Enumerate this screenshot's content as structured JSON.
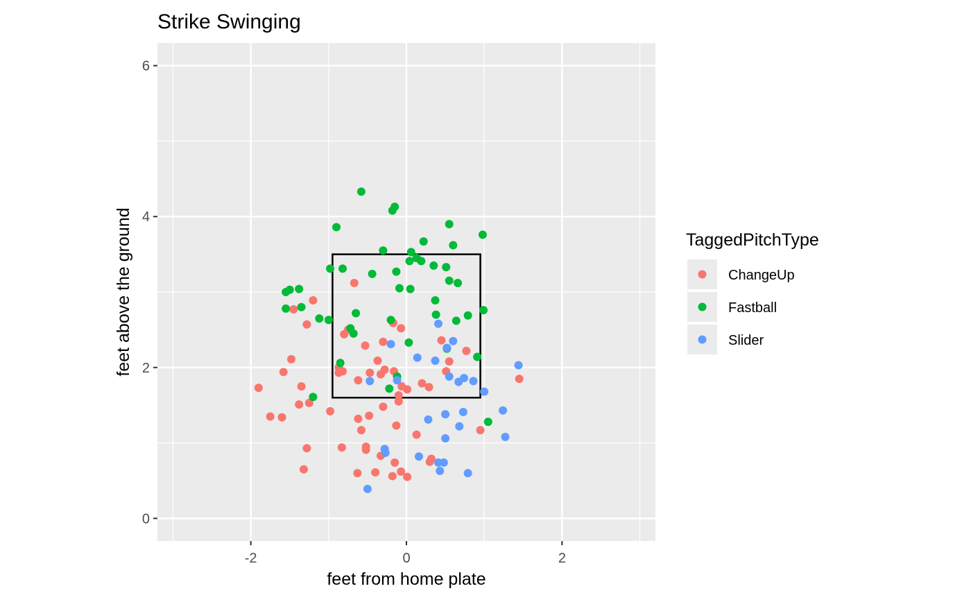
{
  "chart_data": {
    "type": "scatter",
    "title": "Strike Swinging",
    "xlabel": "feet from home plate",
    "ylabel": "feet above the ground",
    "xlim": [
      -3.2,
      3.2
    ],
    "ylim": [
      -0.3,
      6.3
    ],
    "x_ticks": [
      -2,
      0,
      2
    ],
    "y_ticks": [
      0,
      2,
      4,
      6
    ],
    "x_tick_labels": [
      "-2",
      "0",
      "2"
    ],
    "y_tick_labels": [
      "0",
      "2",
      "4",
      "6"
    ],
    "grid": true,
    "legend": {
      "title": "TaggedPitchType",
      "position": "right"
    },
    "strike_zone": {
      "x": [
        -0.95,
        0.95
      ],
      "y": [
        1.6,
        3.5
      ],
      "color": "#000000"
    },
    "series": [
      {
        "name": "ChangeUp",
        "color": "#F8766D",
        "points": [
          [
            -1.9,
            1.73
          ],
          [
            -1.75,
            1.35
          ],
          [
            -1.6,
            1.34
          ],
          [
            -1.58,
            1.94
          ],
          [
            -1.48,
            2.11
          ],
          [
            -1.45,
            2.77
          ],
          [
            -1.38,
            1.51
          ],
          [
            -1.35,
            1.75
          ],
          [
            -1.32,
            0.65
          ],
          [
            -1.28,
            2.57
          ],
          [
            -1.28,
            0.93
          ],
          [
            -1.25,
            1.53
          ],
          [
            -1.2,
            2.89
          ],
          [
            -0.98,
            1.42
          ],
          [
            -0.87,
            1.93
          ],
          [
            -0.87,
            2.0
          ],
          [
            -0.82,
            1.95
          ],
          [
            -0.83,
            0.94
          ],
          [
            -0.8,
            2.44
          ],
          [
            -0.75,
            2.5
          ],
          [
            -0.67,
            3.12
          ],
          [
            -0.62,
            1.83
          ],
          [
            -0.62,
            1.32
          ],
          [
            -0.63,
            0.6
          ],
          [
            -0.58,
            1.17
          ],
          [
            -0.53,
            2.29
          ],
          [
            -0.52,
            0.95
          ],
          [
            -0.52,
            0.91
          ],
          [
            -0.48,
            1.36
          ],
          [
            -0.47,
            1.93
          ],
          [
            -0.4,
            0.61
          ],
          [
            -0.37,
            2.09
          ],
          [
            -0.33,
            1.91
          ],
          [
            -0.33,
            0.83
          ],
          [
            -0.3,
            1.48
          ],
          [
            -0.3,
            2.34
          ],
          [
            -0.28,
            1.97
          ],
          [
            -0.18,
            0.56
          ],
          [
            -0.17,
            2.59
          ],
          [
            -0.16,
            1.95
          ],
          [
            -0.15,
            0.74
          ],
          [
            -0.13,
            1.23
          ],
          [
            -0.1,
            1.63
          ],
          [
            -0.1,
            1.55
          ],
          [
            -0.07,
            2.52
          ],
          [
            -0.06,
            1.75
          ],
          [
            -0.07,
            0.62
          ],
          [
            0.01,
            1.71
          ],
          [
            0.01,
            0.55
          ],
          [
            0.13,
            1.11
          ],
          [
            0.2,
            1.79
          ],
          [
            0.29,
            1.74
          ],
          [
            0.3,
            0.75
          ],
          [
            0.32,
            0.79
          ],
          [
            0.45,
            2.36
          ],
          [
            0.51,
            1.95
          ],
          [
            0.55,
            2.08
          ],
          [
            0.77,
            2.22
          ],
          [
            0.95,
            1.17
          ],
          [
            1.45,
            1.85
          ]
        ]
      },
      {
        "name": "Fastball",
        "color": "#00BA38",
        "points": [
          [
            -1.55,
            3.0
          ],
          [
            -1.5,
            3.03
          ],
          [
            -1.55,
            2.78
          ],
          [
            -1.38,
            3.04
          ],
          [
            -1.35,
            2.8
          ],
          [
            -1.2,
            1.61
          ],
          [
            -1.12,
            2.65
          ],
          [
            -1.0,
            2.63
          ],
          [
            -0.98,
            3.31
          ],
          [
            -0.9,
            3.86
          ],
          [
            -0.85,
            2.06
          ],
          [
            -0.82,
            3.31
          ],
          [
            -0.72,
            2.52
          ],
          [
            -0.68,
            2.45
          ],
          [
            -0.65,
            2.72
          ],
          [
            -0.58,
            4.33
          ],
          [
            -0.44,
            3.24
          ],
          [
            -0.3,
            3.55
          ],
          [
            -0.22,
            1.72
          ],
          [
            -0.2,
            2.63
          ],
          [
            -0.18,
            4.08
          ],
          [
            -0.15,
            4.13
          ],
          [
            -0.13,
            3.27
          ],
          [
            -0.12,
            1.88
          ],
          [
            -0.09,
            3.05
          ],
          [
            0.03,
            2.33
          ],
          [
            0.04,
            3.41
          ],
          [
            0.05,
            3.04
          ],
          [
            0.06,
            3.53
          ],
          [
            0.13,
            3.45
          ],
          [
            0.19,
            3.41
          ],
          [
            0.22,
            3.67
          ],
          [
            0.35,
            3.35
          ],
          [
            0.37,
            2.89
          ],
          [
            0.38,
            2.7
          ],
          [
            0.51,
            3.33
          ],
          [
            0.52,
            2.25
          ],
          [
            0.55,
            3.9
          ],
          [
            0.55,
            3.15
          ],
          [
            0.6,
            3.62
          ],
          [
            0.64,
            2.62
          ],
          [
            0.66,
            3.12
          ],
          [
            0.79,
            2.69
          ],
          [
            0.91,
            2.14
          ],
          [
            0.98,
            3.76
          ],
          [
            0.99,
            2.76
          ],
          [
            1.05,
            1.28
          ]
        ]
      },
      {
        "name": "Slider",
        "color": "#619CFF",
        "points": [
          [
            -0.5,
            0.39
          ],
          [
            -0.47,
            1.82
          ],
          [
            -0.28,
            0.92
          ],
          [
            -0.27,
            0.87
          ],
          [
            -0.2,
            2.31
          ],
          [
            -0.12,
            1.83
          ],
          [
            0.14,
            2.13
          ],
          [
            0.16,
            0.82
          ],
          [
            0.28,
            1.31
          ],
          [
            0.37,
            2.09
          ],
          [
            0.41,
            2.58
          ],
          [
            0.41,
            0.74
          ],
          [
            0.43,
            0.63
          ],
          [
            0.48,
            0.74
          ],
          [
            0.5,
            1.38
          ],
          [
            0.5,
            1.06
          ],
          [
            0.52,
            2.26
          ],
          [
            0.55,
            1.88
          ],
          [
            0.6,
            2.35
          ],
          [
            0.67,
            1.81
          ],
          [
            0.68,
            1.22
          ],
          [
            0.73,
            1.41
          ],
          [
            0.74,
            1.86
          ],
          [
            0.79,
            0.6
          ],
          [
            0.86,
            1.82
          ],
          [
            1.0,
            1.68
          ],
          [
            1.24,
            1.43
          ],
          [
            1.27,
            1.08
          ],
          [
            1.44,
            2.03
          ]
        ]
      }
    ]
  }
}
